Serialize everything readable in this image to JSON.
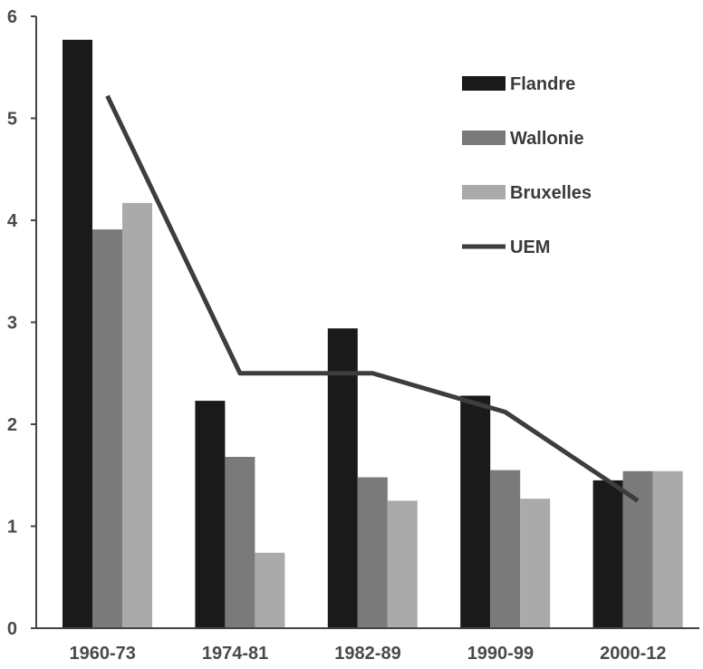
{
  "chart_data": {
    "type": "bar",
    "title": "",
    "xlabel": "",
    "ylabel": "",
    "ylim": [
      0,
      6
    ],
    "yticks": [
      0,
      1,
      2,
      3,
      4,
      5,
      6
    ],
    "grid": false,
    "legend_position": "top-right",
    "categories": [
      "1960-73",
      "1974-81",
      "1982-89",
      "1990-99",
      "2000-12"
    ],
    "series": [
      {
        "name": "Flandre",
        "kind": "bar",
        "color": "#1a1a1a",
        "values": [
          5.77,
          2.23,
          2.94,
          2.28,
          1.45
        ]
      },
      {
        "name": "Wallonie",
        "kind": "bar",
        "color": "#7a7a7a",
        "values": [
          3.91,
          1.68,
          1.48,
          1.55,
          1.54
        ]
      },
      {
        "name": "Bruxelles",
        "kind": "bar",
        "color": "#aaaaaa",
        "values": [
          4.17,
          0.74,
          1.25,
          1.27,
          1.54
        ]
      },
      {
        "name": "UEM",
        "kind": "line",
        "color": "#3d3d3d",
        "values": [
          5.22,
          2.5,
          2.5,
          2.12,
          1.25
        ]
      }
    ]
  }
}
